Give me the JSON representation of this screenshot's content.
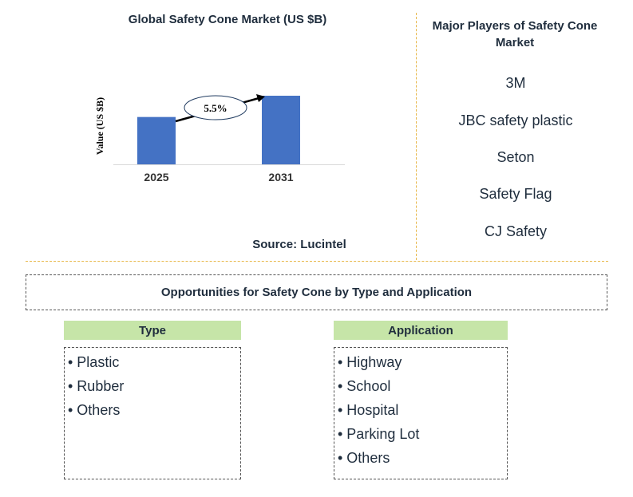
{
  "chart": {
    "title": "Global Safety Cone Market (US $B)",
    "source": "Source: Lucintel"
  },
  "chart_data": {
    "type": "bar",
    "title": "Global Safety Cone Market (US $B)",
    "categories": [
      "2025",
      "2031"
    ],
    "values": [
      0.69,
      1.0
    ],
    "ylabel": "Value (US $B)",
    "xlabel": "",
    "annotation": "5.5%",
    "bar_color": "#4472c4",
    "grid": false
  },
  "players": {
    "title": "Major Players of Safety Cone Market",
    "items": [
      "3M",
      "JBC safety plastic",
      "Seton",
      "Safety Flag",
      "CJ Safety"
    ]
  },
  "opportunities": {
    "title": "Opportunities for Safety Cone by Type and Application"
  },
  "segments": {
    "type": {
      "header": "Type",
      "items": [
        "• Plastic",
        "• Rubber",
        "• Others"
      ]
    },
    "application": {
      "header": "Application",
      "items": [
        "• Highway",
        "• School",
        "• Hospital",
        "• Parking Lot",
        "• Others"
      ]
    }
  },
  "colors": {
    "bar": "#4472c4",
    "segment_header": "#c6e5a8",
    "divider": "#e8b84a"
  }
}
